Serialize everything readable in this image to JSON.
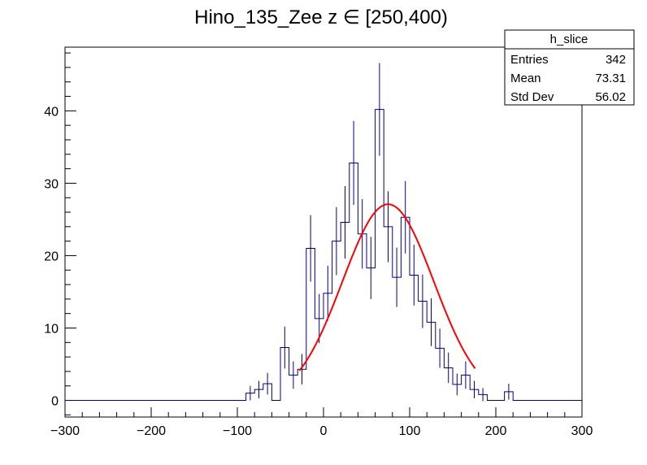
{
  "chart_data": {
    "type": "bar",
    "title": "Hino_135_Zee z  ∈ [250,400)",
    "xlabel": "",
    "ylabel": "",
    "xlim": [
      -300,
      300
    ],
    "ylim": [
      -2.3,
      48.8
    ],
    "x_ticks": [
      -300,
      -200,
      -100,
      0,
      100,
      200,
      300
    ],
    "y_ticks": [
      0,
      10,
      20,
      30,
      40
    ],
    "bin_width": 10,
    "colors": {
      "histogram": "#000080",
      "fit": "#ff0000",
      "axes": "#000000"
    },
    "histogram": {
      "name": "h_slice",
      "bin_centers": [
        -295,
        -285,
        -275,
        -265,
        -255,
        -245,
        -235,
        -225,
        -215,
        -205,
        -195,
        -185,
        -175,
        -165,
        -155,
        -145,
        -135,
        -125,
        -115,
        -105,
        -95,
        -85,
        -75,
        -65,
        -55,
        -45,
        -35,
        -25,
        -15,
        -5,
        5,
        15,
        25,
        35,
        45,
        55,
        65,
        75,
        85,
        95,
        105,
        115,
        125,
        135,
        145,
        155,
        165,
        175,
        185,
        195,
        205,
        215,
        225,
        235,
        245,
        255,
        265,
        275,
        285,
        295
      ],
      "counts": [
        0,
        0,
        0,
        0,
        0,
        0,
        0,
        0,
        0,
        0,
        0,
        0,
        0,
        0,
        0,
        0,
        0,
        0,
        0,
        0,
        0,
        1,
        1.5,
        2.3,
        0,
        7.3,
        3.5,
        4.3,
        21,
        11.3,
        14.8,
        22,
        24.6,
        32.8,
        23,
        18.3,
        40.2,
        24,
        17,
        25.3,
        17.3,
        13.7,
        10.8,
        7.2,
        4.5,
        2.2,
        3.5,
        1.5,
        0.8,
        0,
        0,
        1.2,
        0,
        0,
        0,
        0,
        0,
        0,
        0,
        0
      ],
      "errors": [
        0,
        0,
        0,
        0,
        0,
        0,
        0,
        0,
        0,
        0,
        0,
        0,
        0,
        0,
        0,
        0,
        0,
        0,
        0,
        0,
        0,
        1,
        1.2,
        1.5,
        0,
        2.9,
        1.9,
        2.1,
        4.6,
        3.4,
        3.8,
        4.7,
        5.0,
        5.8,
        4.8,
        4.3,
        6.4,
        4.9,
        4.1,
        5.0,
        4.2,
        3.7,
        3.3,
        2.7,
        2.1,
        1.5,
        1.9,
        1.2,
        0.9,
        0,
        0,
        1.1,
        0,
        0,
        0,
        0,
        0,
        0,
        0,
        0
      ]
    },
    "fit": {
      "name": "gaussian fit",
      "x_range": [
        -28,
        177
      ],
      "amplitude": 27.1,
      "mean": 75,
      "sigma": 53
    },
    "stats_box": {
      "title": "h_slice",
      "rows": [
        {
          "label": "Entries",
          "value": "342"
        },
        {
          "label": "Mean",
          "value": "73.31"
        },
        {
          "label": "Std Dev",
          "value": "56.02"
        }
      ]
    }
  }
}
